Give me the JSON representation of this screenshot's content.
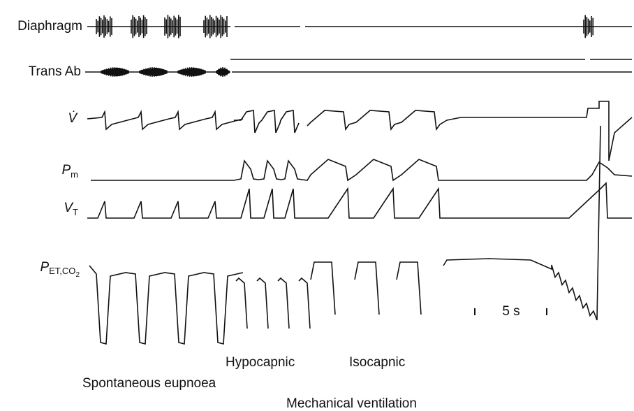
{
  "traces": [
    {
      "label": "Diaphragm"
    },
    {
      "label": "Trans Ab"
    },
    {
      "label": "V̇"
    },
    {
      "label": "P",
      "subscript": "m"
    },
    {
      "label": "V",
      "subscript": "T"
    },
    {
      "label": "P",
      "subscript": "ET,CO",
      "subsubscript": "2"
    }
  ],
  "scale_bar": "5 s",
  "annotations": {
    "hypocapnic": "Hypocapnic",
    "isocapnic": "Isocapnic",
    "spontaneous": "Spontaneous eupnoea",
    "mechanical": "Mechanical ventilation"
  }
}
